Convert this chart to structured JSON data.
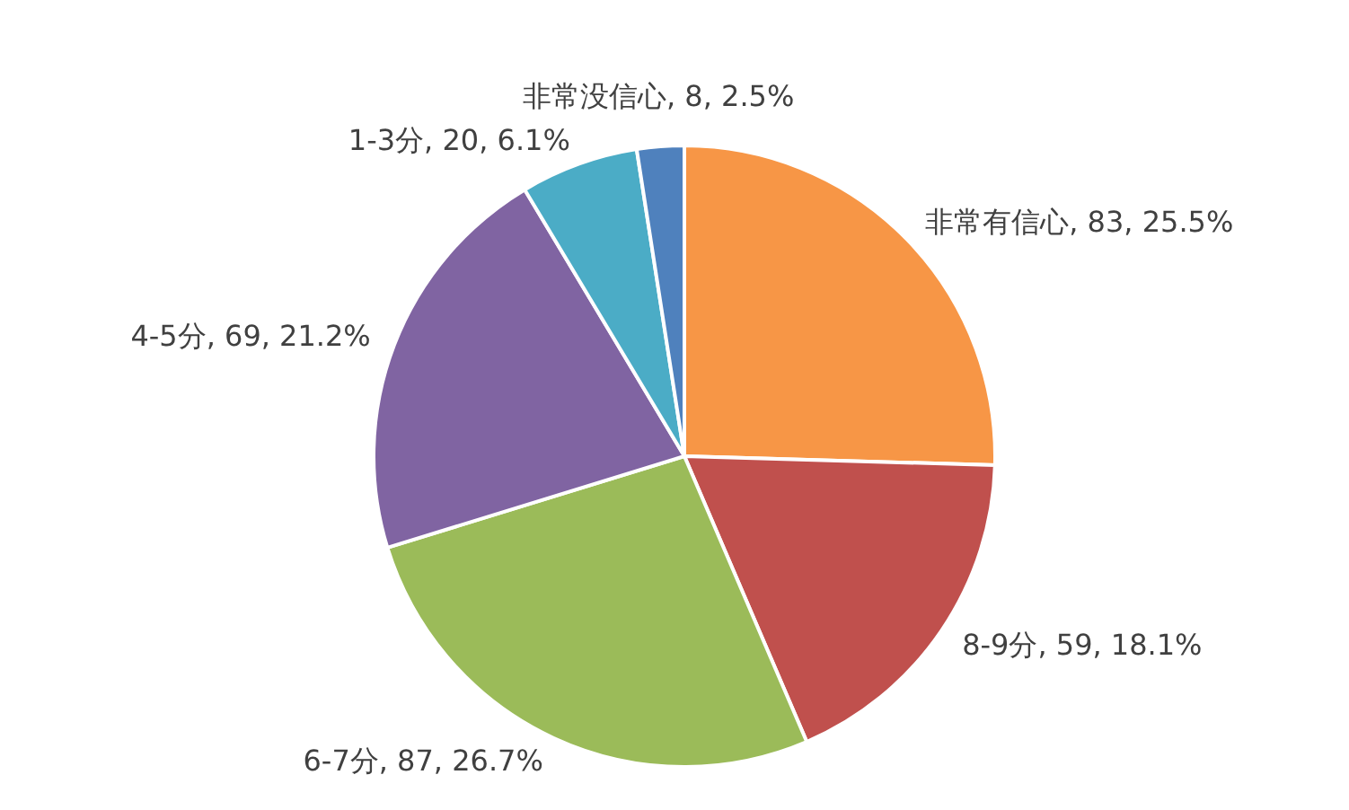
{
  "chart_data": {
    "type": "pie",
    "categories": [
      "非常有信心",
      "8-9分",
      "6-7分",
      "4-5分",
      "1-3分",
      "非常没信心"
    ],
    "values": [
      83,
      59,
      87,
      69,
      20,
      8
    ],
    "colors": [
      "#f79646",
      "#c0504d",
      "#9bbb59",
      "#8064a2",
      "#4bacc6",
      "#4f81bd"
    ],
    "value_labels": [
      "83, 25.5%",
      "59, 18.1%",
      "87, 26.7%",
      "69, 21.2%",
      "20, 6.1%",
      "8, 2.5%"
    ],
    "legend": false
  }
}
